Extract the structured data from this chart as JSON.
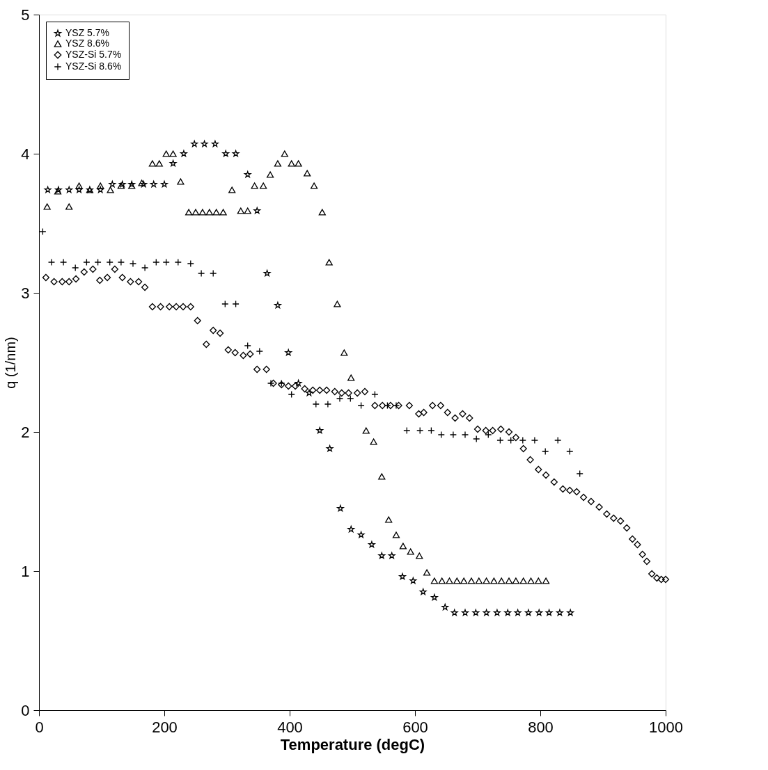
{
  "chart_data": {
    "type": "scatter",
    "xlabel": "Temperature (degC)",
    "ylabel": "q (1/nm)",
    "xlim": [
      0,
      1000
    ],
    "xticks": [
      0,
      200,
      400,
      600,
      800,
      1000
    ],
    "ylim": [
      0,
      5
    ],
    "yticks": [
      0,
      1,
      2,
      3,
      4,
      5
    ],
    "grid": false,
    "legend": "top left",
    "series": [
      {
        "name": "YSZ 5.7%",
        "color": "#000000",
        "marker": "star",
        "x": [
          14,
          31,
          48,
          64,
          81,
          98,
          117,
          133,
          148,
          167,
          183,
          200,
          214,
          231,
          248,
          264,
          281,
          298,
          314,
          333,
          348,
          364,
          381,
          398,
          414,
          431,
          448,
          464,
          481,
          498,
          514,
          531,
          547,
          563,
          580,
          597,
          613,
          631,
          648,
          663,
          680,
          697,
          714,
          731,
          748,
          764,
          781,
          798,
          814,
          831,
          848
        ],
        "values": [
          3.74,
          3.74,
          3.74,
          3.74,
          3.74,
          3.74,
          3.78,
          3.78,
          3.78,
          3.78,
          3.78,
          3.78,
          3.93,
          4.0,
          4.07,
          4.07,
          4.07,
          4.0,
          4.0,
          3.85,
          3.59,
          3.14,
          2.91,
          2.57,
          2.35,
          2.28,
          2.01,
          1.88,
          1.45,
          1.3,
          1.26,
          1.19,
          1.11,
          1.11,
          0.96,
          0.93,
          0.85,
          0.81,
          0.74,
          0.7,
          0.7,
          0.7,
          0.7,
          0.7,
          0.7,
          0.7,
          0.7,
          0.7,
          0.7,
          0.7,
          0.7
        ]
      },
      {
        "name": "YSZ 8.6%",
        "color": "#000000",
        "marker": "triangle",
        "x": [
          13,
          30,
          48,
          64,
          81,
          98,
          114,
          131,
          148,
          164,
          181,
          192,
          203,
          214,
          226,
          239,
          250,
          261,
          272,
          283,
          294,
          308,
          322,
          333,
          344,
          358,
          369,
          381,
          392,
          403,
          414,
          428,
          439,
          452,
          463,
          476,
          487,
          498,
          522,
          534,
          547,
          558,
          570,
          581,
          593,
          607,
          619,
          631,
          643,
          655,
          667,
          678,
          690,
          702,
          714,
          726,
          738,
          750,
          761,
          773,
          785,
          797,
          809
        ],
        "values": [
          3.62,
          3.73,
          3.62,
          3.77,
          3.74,
          3.77,
          3.74,
          3.77,
          3.77,
          3.79,
          3.93,
          3.93,
          4.0,
          4.0,
          3.8,
          3.58,
          3.58,
          3.58,
          3.58,
          3.58,
          3.58,
          3.74,
          3.59,
          3.59,
          3.77,
          3.77,
          3.85,
          3.93,
          4.0,
          3.93,
          3.93,
          3.86,
          3.77,
          3.58,
          3.22,
          2.92,
          2.57,
          2.39,
          2.01,
          1.93,
          1.68,
          1.37,
          1.26,
          1.18,
          1.14,
          1.11,
          0.99,
          0.93,
          0.93,
          0.93,
          0.93,
          0.93,
          0.93,
          0.93,
          0.93,
          0.93,
          0.93,
          0.93,
          0.93,
          0.93,
          0.93,
          0.93,
          0.93
        ]
      },
      {
        "name": "YSZ-Si 5.7%",
        "color": "#000000",
        "marker": "diamond",
        "x": [
          11,
          24,
          37,
          48,
          59,
          72,
          86,
          97,
          109,
          121,
          133,
          146,
          159,
          169,
          181,
          194,
          208,
          219,
          230,
          242,
          253,
          267,
          278,
          289,
          302,
          313,
          326,
          337,
          348,
          363,
          374,
          387,
          398,
          409,
          424,
          437,
          448,
          459,
          472,
          483,
          494,
          508,
          520,
          536,
          548,
          561,
          574,
          591,
          606,
          614,
          628,
          641,
          652,
          664,
          676,
          687,
          700,
          713,
          724,
          737,
          750,
          761,
          773,
          784,
          797,
          809,
          822,
          836,
          847,
          858,
          869,
          881,
          894,
          906,
          917,
          928,
          938,
          947,
          955,
          963,
          970,
          978,
          986,
          993,
          1000
        ],
        "values": [
          3.11,
          3.08,
          3.08,
          3.08,
          3.1,
          3.15,
          3.17,
          3.09,
          3.11,
          3.17,
          3.11,
          3.08,
          3.08,
          3.04,
          2.9,
          2.9,
          2.9,
          2.9,
          2.9,
          2.9,
          2.8,
          2.63,
          2.73,
          2.71,
          2.59,
          2.57,
          2.55,
          2.56,
          2.45,
          2.45,
          2.35,
          2.34,
          2.33,
          2.33,
          2.31,
          2.3,
          2.3,
          2.3,
          2.29,
          2.28,
          2.28,
          2.28,
          2.29,
          2.19,
          2.19,
          2.19,
          2.19,
          2.19,
          2.13,
          2.14,
          2.19,
          2.19,
          2.14,
          2.1,
          2.13,
          2.1,
          2.02,
          2.01,
          2.01,
          2.02,
          2.0,
          1.96,
          1.88,
          1.8,
          1.73,
          1.69,
          1.64,
          1.59,
          1.58,
          1.57,
          1.53,
          1.5,
          1.46,
          1.41,
          1.38,
          1.36,
          1.31,
          1.23,
          1.19,
          1.12,
          1.07,
          0.98,
          0.95,
          0.94,
          0.94
        ]
      },
      {
        "name": "YSZ-Si 8.6%",
        "color": "#000000",
        "marker": "cross",
        "x": [
          6,
          20,
          39,
          58,
          76,
          94,
          113,
          131,
          150,
          169,
          187,
          203,
          222,
          242,
          259,
          278,
          297,
          314,
          333,
          352,
          370,
          387,
          403,
          442,
          461,
          480,
          497,
          514,
          536,
          556,
          570,
          587,
          608,
          626,
          642,
          661,
          680,
          698,
          717,
          736,
          753,
          772,
          791,
          808,
          828,
          847,
          863
        ],
        "values": [
          3.44,
          3.22,
          3.22,
          3.18,
          3.22,
          3.22,
          3.22,
          3.22,
          3.21,
          3.18,
          3.22,
          3.22,
          3.22,
          3.21,
          3.14,
          3.14,
          2.92,
          2.92,
          2.62,
          2.58,
          2.35,
          2.35,
          2.27,
          2.2,
          2.2,
          2.24,
          2.24,
          2.19,
          2.27,
          2.19,
          2.19,
          2.01,
          2.01,
          2.01,
          1.98,
          1.98,
          1.98,
          1.95,
          1.98,
          1.94,
          1.94,
          1.94,
          1.94,
          1.86,
          1.94,
          1.86,
          1.7
        ]
      }
    ]
  }
}
